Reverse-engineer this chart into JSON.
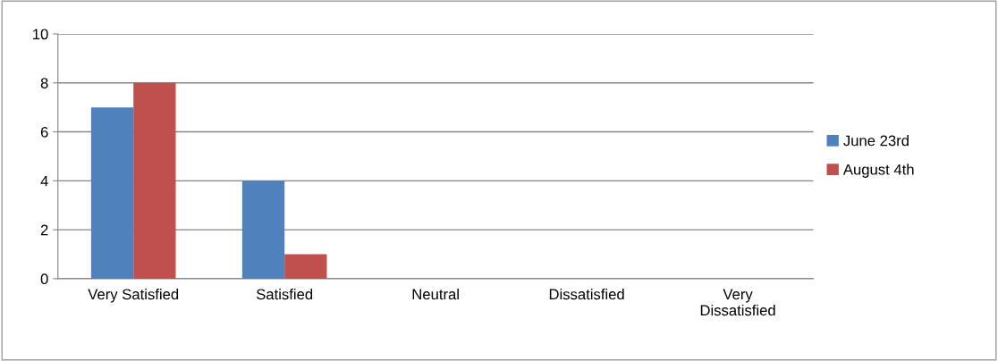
{
  "chart_data": {
    "type": "bar",
    "categories": [
      "Very Satisfied",
      "Satisfied",
      "Neutral",
      "Dissatisfied",
      "Very Dissatisfied"
    ],
    "series": [
      {
        "name": "June 23rd",
        "color": "#4f81bd",
        "values": [
          7,
          4,
          0,
          0,
          0
        ]
      },
      {
        "name": "August 4th",
        "color": "#c0504d",
        "values": [
          8,
          1,
          0,
          0,
          0
        ]
      }
    ],
    "ylim": [
      0,
      10
    ],
    "yticks": [
      0,
      2,
      4,
      6,
      8,
      10
    ],
    "grid": "y",
    "legend": "right"
  }
}
